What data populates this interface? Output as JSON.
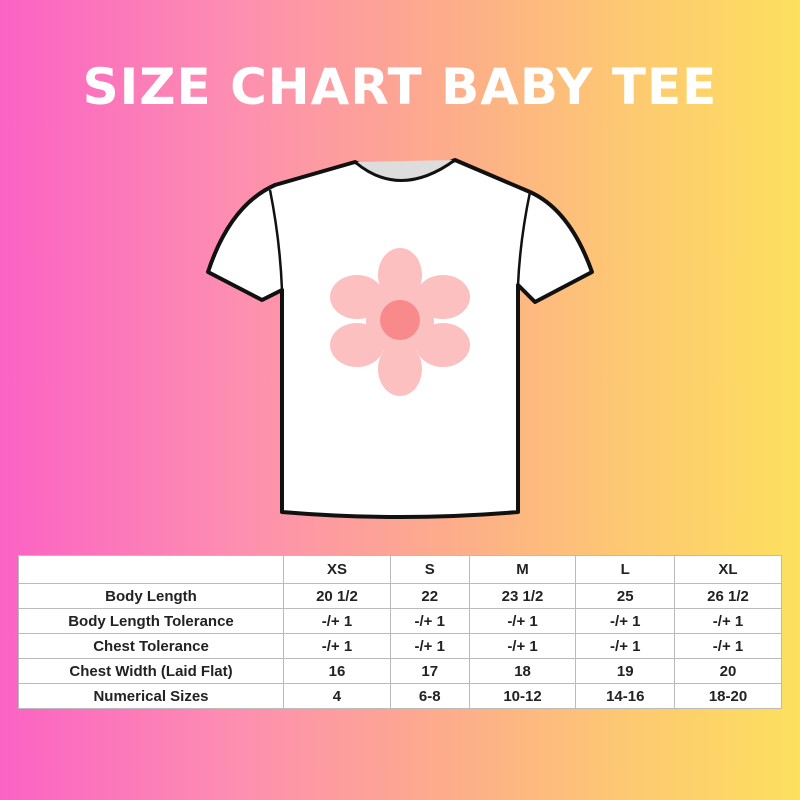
{
  "title": "SIZE CHART BABY TEE",
  "colors": {
    "gradient_left": "#fb62c4",
    "gradient_right": "#fde05e",
    "petal": "#fdc0c0",
    "flower_center": "#f98a8c"
  },
  "table": {
    "headers": [
      "",
      "XS",
      "S",
      "M",
      "L",
      "XL"
    ],
    "rows": [
      {
        "label": "Body Length",
        "values": [
          "20 1/2",
          "22",
          "23 1/2",
          "25",
          "26 1/2"
        ]
      },
      {
        "label": "Body Length Tolerance",
        "values": [
          "-/+ 1",
          "-/+ 1",
          "-/+ 1",
          "-/+ 1",
          "-/+ 1"
        ]
      },
      {
        "label": "Chest Tolerance",
        "values": [
          "-/+ 1",
          "-/+ 1",
          "-/+ 1",
          "-/+ 1",
          "-/+ 1"
        ]
      },
      {
        "label": "Chest Width (Laid Flat)",
        "values": [
          "16",
          "17",
          "18",
          "19",
          "20"
        ]
      },
      {
        "label": "Numerical Sizes",
        "values": [
          "4",
          "6-8",
          "10-12",
          "14-16",
          "18-20"
        ]
      }
    ]
  }
}
